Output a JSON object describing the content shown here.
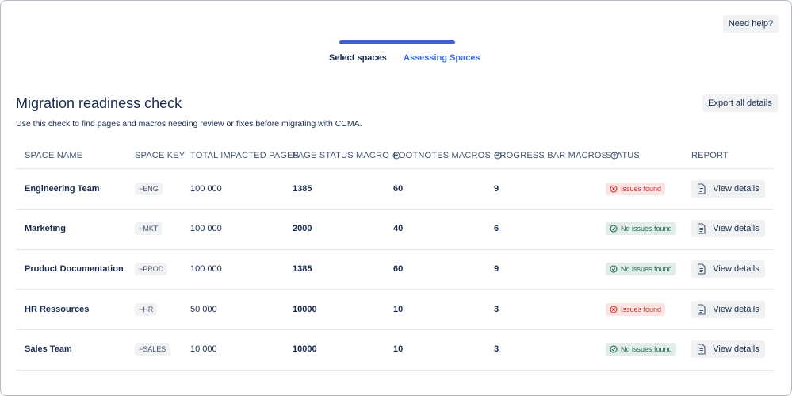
{
  "help_button": "Need help?",
  "stepper": {
    "steps": [
      "Select spaces",
      "Assessing Spaces"
    ]
  },
  "header": {
    "title": "Migration readiness check",
    "description": "Use this check to find pages and macros needing review or fixes before migrating with CCMA.",
    "export_button": "Export all details"
  },
  "table": {
    "columns": [
      "SPACE NAME",
      "SPACE KEY",
      "TOTAL IMPACTED PAGES",
      "PAGE STATUS MACRO",
      "FOOTNOTES MACROS",
      "PROGRESS BAR MACROS",
      "STATUS",
      "REPORT"
    ],
    "rows": [
      {
        "cells": [
          "Engineering Team",
          "~ENG",
          "100 000",
          "1385",
          "60",
          "9"
        ],
        "status": {
          "label": "Issues found",
          "color": "#c9372c"
        },
        "report": "View details"
      },
      {
        "cells": [
          "Marketing",
          "~MKT",
          "100 000",
          "2000",
          "40",
          "6"
        ],
        "status": {
          "label": "No issues found",
          "color": "#216e4e"
        },
        "report": "View details"
      },
      {
        "cells": [
          "Product Documentation",
          "~PROD",
          "100 000",
          "1385",
          "60",
          "9"
        ],
        "status": {
          "label": "No issues found",
          "color": "#216e4e"
        },
        "report": "View details"
      },
      {
        "cells": [
          "HR Ressources",
          "~HR",
          "50 000",
          "10000",
          "10",
          "3"
        ],
        "status": {
          "label": "Issues found",
          "color": "#c9372c"
        },
        "report": "View details"
      },
      {
        "cells": [
          "Sales Team",
          "~SALES",
          "10 000",
          "10000",
          "10",
          "3"
        ],
        "status": {
          "label": "No issues found",
          "color": "#216e4e"
        },
        "report": "View details"
      }
    ]
  }
}
